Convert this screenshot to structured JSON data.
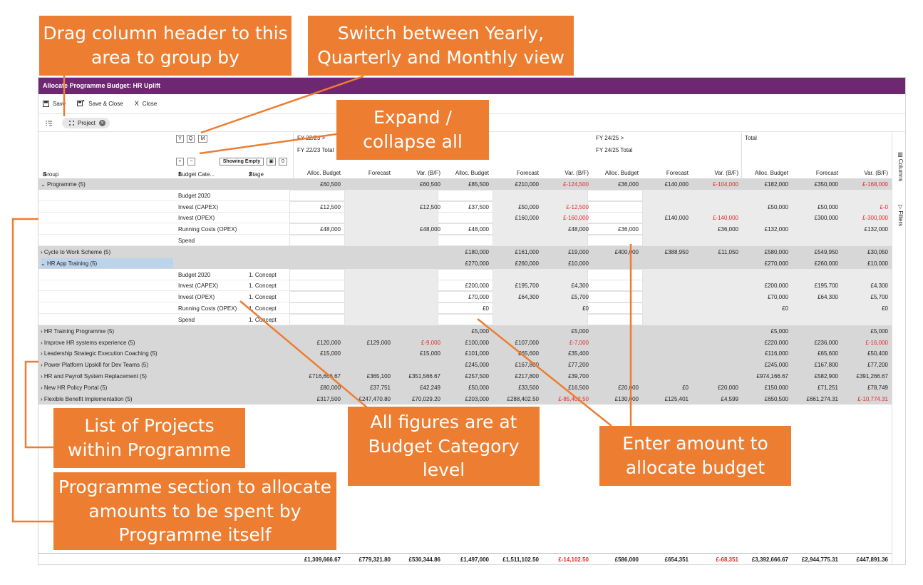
{
  "title": "Allocate Programme Budget: HR Uplift",
  "toolbar": {
    "save": "Save",
    "save_close": "Save & Close",
    "close": "Close"
  },
  "group_chip": "Project",
  "view_buttons": [
    "Y",
    "Q",
    "M"
  ],
  "expand_buttons": [
    "+",
    "−"
  ],
  "showing_empty": "Showing Empty",
  "zero_counter": "0",
  "periods": {
    "fy2223": "FY 22/23",
    "fy2223_total": "FY 22/23 Total",
    "fy2425": "FY 24/25",
    "fy2425_total": "FY 24/25 Total",
    "total": "Total"
  },
  "columns": {
    "group": "Group",
    "group_num": "3",
    "budget_cat": "Budget Cate...",
    "budget_cat_num": "1",
    "stage": "Stage",
    "stage_num": "2",
    "metrics": [
      "Alloc. Budget",
      "Forecast",
      "Var. (B/F)",
      "Alloc. Budget",
      "Forecast",
      "Var. (B/F)",
      "Alloc. Budget",
      "Forecast",
      "Var. (B/F)",
      "Alloc. Budget",
      "Forecast",
      "Var. (B/F)"
    ]
  },
  "rows": [
    {
      "type": "grp",
      "label": "Programme (5)",
      "expanded": true,
      "v": [
        "£60,500",
        "",
        "£60,500",
        "£85,500",
        "£210,000",
        "£-124,500",
        "£36,000",
        "£140,000",
        "£-104,000",
        "£182,000",
        "£350,000",
        "£-168,000"
      ]
    },
    {
      "type": "cat",
      "cat": "Budget 2020",
      "stage": "",
      "v": [
        "",
        "",
        "",
        "",
        "",
        "",
        "",
        "",
        "",
        "",
        "",
        ""
      ]
    },
    {
      "type": "cat",
      "cat": "Invest (CAPEX)",
      "stage": "",
      "v": [
        "£12,500",
        "",
        "£12,500",
        "£37,500",
        "£50,000",
        "£-12,500",
        "",
        "",
        "",
        "£50,000",
        "£50,000",
        "£-0"
      ]
    },
    {
      "type": "cat",
      "cat": "Invest (OPEX)",
      "stage": "",
      "v": [
        "",
        "",
        "",
        "",
        "£160,000",
        "£-160,000",
        "",
        "£140,000",
        "£-140,000",
        "",
        "£300,000",
        "£-300,000"
      ]
    },
    {
      "type": "cat",
      "cat": "Running Costs (OPEX)",
      "stage": "",
      "v": [
        "£48,000",
        "",
        "£48,000",
        "£48,000",
        "",
        "£48,000",
        "£36,000",
        "",
        "£36,000",
        "£132,000",
        "",
        "£132,000"
      ]
    },
    {
      "type": "cat",
      "cat": "Spend",
      "stage": "",
      "v": [
        "",
        "",
        "",
        "",
        "",
        "",
        "",
        "",
        "",
        "",
        "",
        ""
      ]
    },
    {
      "type": "grp",
      "label": "Cycle to Work Scheme (5)",
      "expanded": false,
      "v": [
        "",
        "",
        "",
        "£180,000",
        "£161,000",
        "£19,000",
        "£400,000",
        "£388,950",
        "£11,050",
        "£580,000",
        "£549,950",
        "£30,050"
      ]
    },
    {
      "type": "grp",
      "label": "HR App Training (5)",
      "expanded": true,
      "selected": true,
      "v": [
        "",
        "",
        "",
        "£270,000",
        "£260,000",
        "£10,000",
        "",
        "",
        "",
        "£270,000",
        "£260,000",
        "£10,000"
      ]
    },
    {
      "type": "cat",
      "cat": "Budget 2020",
      "stage": "1. Concept",
      "v": [
        "",
        "",
        "",
        "",
        "",
        "",
        "",
        "",
        "",
        "",
        "",
        ""
      ]
    },
    {
      "type": "cat",
      "cat": "Invest (CAPEX)",
      "stage": "1. Concept",
      "v": [
        "",
        "",
        "",
        "£200,000",
        "£195,700",
        "£4,300",
        "",
        "",
        "",
        "£200,000",
        "£195,700",
        "£4,300"
      ]
    },
    {
      "type": "cat",
      "cat": "Invest (OPEX)",
      "stage": "1. Concept",
      "v": [
        "",
        "",
        "",
        "£70,000",
        "£64,300",
        "£5,700",
        "",
        "",
        "",
        "£70,000",
        "£64,300",
        "£5,700"
      ]
    },
    {
      "type": "cat",
      "cat": "Running Costs (OPEX)",
      "stage": "1. Concept",
      "v": [
        "",
        "",
        "",
        "£0",
        "",
        "£0",
        "",
        "",
        "",
        "£0",
        "",
        "£0"
      ]
    },
    {
      "type": "cat",
      "cat": "Spend",
      "stage": "1. Concept",
      "v": [
        "",
        "",
        "",
        "",
        "",
        "",
        "",
        "",
        "",
        "",
        "",
        ""
      ]
    },
    {
      "type": "grp",
      "label": "HR Training Programme (5)",
      "expanded": false,
      "v": [
        "",
        "",
        "",
        "£5,000",
        "",
        "£5,000",
        "",
        "",
        "",
        "£5,000",
        "",
        "£5,000"
      ]
    },
    {
      "type": "grp",
      "label": "Improve HR systems experience (5)",
      "expanded": false,
      "v": [
        "£120,000",
        "£129,000",
        "£-9,000",
        "£100,000",
        "£107,000",
        "£-7,000",
        "",
        "",
        "",
        "£220,000",
        "£236,000",
        "£-16,000"
      ]
    },
    {
      "type": "grp",
      "label": "Leadership Strategic Execution Coaching (5)",
      "expanded": false,
      "v": [
        "£15,000",
        "",
        "£15,000",
        "£101,000",
        "£65,600",
        "£35,400",
        "",
        "",
        "",
        "£116,000",
        "£65,600",
        "£50,400"
      ]
    },
    {
      "type": "grp",
      "label": "Power Platform Upskill for Dev Teams (5)",
      "expanded": false,
      "v": [
        "",
        "",
        "",
        "£245,000",
        "£167,800",
        "£77,200",
        "",
        "",
        "",
        "£245,000",
        "£167,800",
        "£77,200"
      ]
    },
    {
      "type": "grp",
      "label": "HR and Payroll System Replacement (5)",
      "expanded": false,
      "v": [
        "£716,666.67",
        "£365,100",
        "£351,566.67",
        "£257,500",
        "£217,800",
        "£39,700",
        "",
        "",
        "",
        "£974,166.67",
        "£582,900",
        "£391,266.67"
      ]
    },
    {
      "type": "grp",
      "label": "New HR Policy Portal (5)",
      "expanded": false,
      "v": [
        "£80,000",
        "£37,751",
        "£42,249",
        "£50,000",
        "£33,500",
        "£16,500",
        "£20,000",
        "£0",
        "£20,000",
        "£150,000",
        "£71,251",
        "£78,749"
      ]
    },
    {
      "type": "grp",
      "label": "Flexible Benefit Implementation (5)",
      "expanded": false,
      "v": [
        "£317,500",
        "£247,470.80",
        "£70,029.20",
        "£203,000",
        "£288,402.50",
        "£-85,402.50",
        "£130,000",
        "£125,401",
        "£4,599",
        "£650,500",
        "£661,274.31",
        "£-10,774.31"
      ]
    }
  ],
  "totals": [
    "£1,309,666.67",
    "£779,321.80",
    "£530,344.86",
    "£1,497,000",
    "£1,511,102.50",
    "£-14,102.50",
    "£586,000",
    "£654,351",
    "£-68,351",
    "£3,392,666.67",
    "£2,944,775.31",
    "£447,891.36"
  ],
  "side_panel": {
    "columns": "Columns",
    "filters": "Filters"
  },
  "callouts": {
    "group_by": "Drag column header to this\narea to group by",
    "switch_view": "Switch between Yearly,\nQuarterly and Monthly view",
    "expand": "Expand /\ncollapse all",
    "projects": "List of Projects\nwithin Programme",
    "programme": "Programme section to allocate\namounts to be spent by\nProgramme itself",
    "figures": "All figures are at\nBudget Category\nlevel",
    "enter": "Enter amount to\nallocate budget"
  },
  "colors": {
    "titlebar": "#6e2771",
    "callout": "#ed7d31",
    "negative": "#e02a2a",
    "group_row": "#d7d7d7",
    "selected": "#bcd3ec"
  }
}
